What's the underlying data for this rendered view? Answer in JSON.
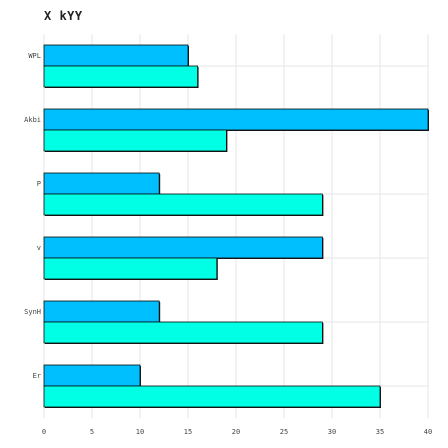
{
  "chart_data": {
    "type": "bar",
    "orientation": "horizontal",
    "title": "X kYY",
    "xlabel": "",
    "ylabel": "",
    "xlim": [
      0,
      40
    ],
    "xticks": [
      0,
      5,
      10,
      15,
      20,
      25,
      30,
      35,
      40
    ],
    "grid": true,
    "legend": "none",
    "categories": [
      "WPL",
      "Akbi",
      "P",
      "v",
      "SynH",
      "Er"
    ],
    "series": [
      {
        "values": [
          15,
          40,
          12,
          29,
          12,
          10
        ],
        "color": "#00bfff"
      },
      {
        "values": [
          16,
          19,
          29,
          18,
          29,
          35
        ],
        "color": "#00ffe5"
      }
    ]
  }
}
